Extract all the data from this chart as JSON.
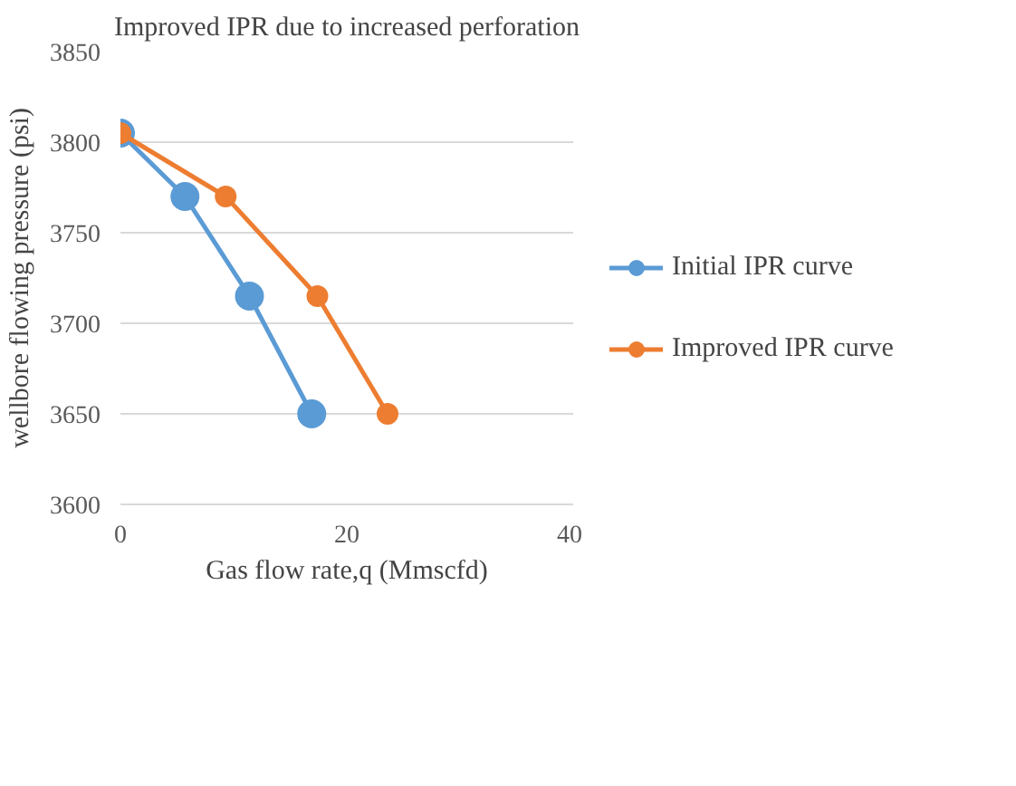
{
  "chart_data": {
    "type": "line",
    "title": "Improved IPR due to increased perforation",
    "xlabel": "Gas flow rate,q (Mmscfd)",
    "ylabel": "wellbore flowing pressure (psi)",
    "xlim": [
      0,
      40
    ],
    "xticks": [
      0,
      20,
      40
    ],
    "ylim": [
      3600,
      3850
    ],
    "yticks": [
      3600,
      3650,
      3700,
      3750,
      3800,
      3850
    ],
    "grid": "y",
    "legend": "right",
    "marker": "circle",
    "line_style": "solid",
    "series": [
      {
        "name": "Initial IPR curve",
        "color": "#5b9bd5",
        "x": [
          0,
          5.7,
          11.4,
          16.9
        ],
        "values": [
          3805,
          3770,
          3715,
          3650
        ]
      },
      {
        "name": "Improved IPR curve",
        "color": "#ed7d31",
        "x": [
          0,
          9.3,
          17.4,
          23.6
        ],
        "values": [
          3805,
          3770,
          3715,
          3650
        ]
      }
    ]
  }
}
